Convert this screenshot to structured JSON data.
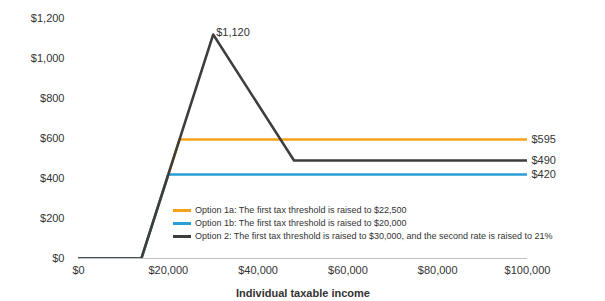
{
  "chart_data": {
    "type": "line",
    "x_label": "Individual taxable income",
    "x": [
      0,
      14000,
      20000,
      22500,
      30000,
      48000,
      100000
    ],
    "series": [
      {
        "name": "Option 1a: The first tax threshold is raised to $22,500",
        "color": "#f5a21b",
        "values": [
          0,
          0,
          420,
          595,
          595,
          595,
          595
        ]
      },
      {
        "name": "Option 1b: The first tax threshold is raised to $20,000",
        "color": "#2a9fd6",
        "values": [
          0,
          0,
          420,
          420,
          420,
          420,
          420
        ]
      },
      {
        "name": "Option 2: The first tax threshold is raised to $30,000, and the second rate is raised to 21%",
        "color": "#3d3d3d",
        "values": [
          0,
          0,
          420,
          595,
          1120,
          490,
          490
        ]
      }
    ],
    "xlim": [
      0,
      100000
    ],
    "xticks": [
      {
        "value": 0,
        "label": "$0"
      },
      {
        "value": 20000,
        "label": "$20,000"
      },
      {
        "value": 40000,
        "label": "$40,000"
      },
      {
        "value": 60000,
        "label": "$60,000"
      },
      {
        "value": 80000,
        "label": "$80,000"
      },
      {
        "value": 100000,
        "label": "$100,000"
      }
    ],
    "ylim": [
      0,
      1200
    ],
    "yticks": [
      {
        "value": 0,
        "label": "$0"
      },
      {
        "value": 200,
        "label": "$200"
      },
      {
        "value": 400,
        "label": "$400"
      },
      {
        "value": 600,
        "label": "$600"
      },
      {
        "value": 800,
        "label": "$800"
      },
      {
        "value": 1000,
        "label": "$1,000"
      },
      {
        "value": 1200,
        "label": "$1,200"
      }
    ],
    "annotations": [
      {
        "text": "$1,120",
        "x": 30000,
        "y": 1120
      },
      {
        "text": "$595",
        "x": 100000,
        "y": 595
      },
      {
        "text": "$490",
        "x": 100000,
        "y": 490
      },
      {
        "text": "$420",
        "x": 100000,
        "y": 420
      }
    ],
    "grid": false,
    "legend": "bottom-left"
  }
}
